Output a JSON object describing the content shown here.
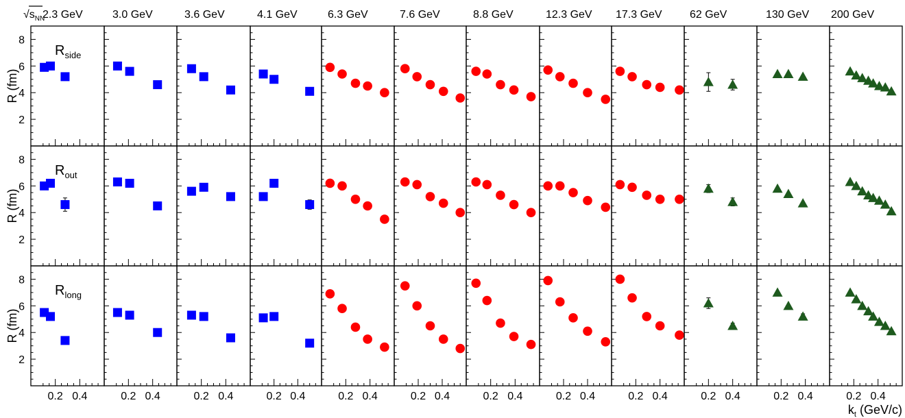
{
  "chart_data": {
    "type": "scatter",
    "energy_symbol": "√s",
    "energy_symbol_sub": "NN",
    "energies": [
      "2.3 GeV",
      "3.0 GeV",
      "3.6 GeV",
      "4.1 GeV",
      "6.3 GeV",
      "7.6 GeV",
      "8.8 GeV",
      "12.3 GeV",
      "17.3 GeV",
      "62  GeV",
      "130 GeV",
      "200 GeV"
    ],
    "rows": [
      {
        "label": "R",
        "sub": "side"
      },
      {
        "label": "R",
        "sub": "out"
      },
      {
        "label": "R",
        "sub": "long"
      }
    ],
    "ylabel": "R (fm)",
    "xlabel": "k",
    "xlabel_sub": "t",
    "xlabel_unit": " (GeV/c)",
    "ylim": [
      0,
      9
    ],
    "xlim": [
      0,
      0.6
    ],
    "y_ticks": [
      2,
      4,
      6,
      8
    ],
    "y_tick_labels": [
      "2",
      "4",
      "6",
      "8"
    ],
    "x_ticks": [
      0.2,
      0.4
    ],
    "x_tick_labels": [
      "0.2",
      "0.4"
    ],
    "grid": false,
    "marker_colors": {
      "square": "#0000ff",
      "circle": "#ff0000",
      "triangle": "#1e5a1e"
    },
    "panel_markers": [
      "square",
      "square",
      "square",
      "square",
      "circle",
      "circle",
      "circle",
      "circle",
      "circle",
      "triangle",
      "triangle",
      "triangle"
    ],
    "panels": [
      [
        [
          [
            0.11,
            5.9,
            0.12
          ],
          [
            0.16,
            6.0,
            0.25
          ],
          [
            0.28,
            5.2,
            0.15
          ]
        ],
        [
          [
            0.11,
            6.0,
            0.1
          ],
          [
            0.21,
            5.6,
            0.1
          ],
          [
            0.44,
            4.6,
            0.1
          ]
        ],
        [
          [
            0.12,
            5.8,
            0.1
          ],
          [
            0.22,
            5.2,
            0.1
          ],
          [
            0.44,
            4.2,
            0.1
          ]
        ],
        [
          [
            0.11,
            5.4,
            0.25
          ],
          [
            0.2,
            5.0,
            0.1
          ],
          [
            0.5,
            4.1,
            0.1
          ]
        ],
        [
          [
            0.07,
            5.9,
            0.1
          ],
          [
            0.17,
            5.4,
            0.1
          ],
          [
            0.28,
            4.7,
            0.1
          ],
          [
            0.38,
            4.5,
            0.1
          ],
          [
            0.52,
            4.0,
            0.1
          ]
        ],
        [
          [
            0.09,
            5.8,
            0.1
          ],
          [
            0.19,
            5.2,
            0.1
          ],
          [
            0.3,
            4.6,
            0.1
          ],
          [
            0.41,
            4.1,
            0.1
          ],
          [
            0.55,
            3.6,
            0.1
          ]
        ],
        [
          [
            0.08,
            5.6,
            0.1
          ],
          [
            0.17,
            5.4,
            0.1
          ],
          [
            0.28,
            4.6,
            0.1
          ],
          [
            0.39,
            4.2,
            0.1
          ],
          [
            0.53,
            3.7,
            0.1
          ]
        ],
        [
          [
            0.07,
            5.7,
            0.1
          ],
          [
            0.17,
            5.2,
            0.1
          ],
          [
            0.28,
            4.7,
            0.1
          ],
          [
            0.4,
            4.0,
            0.1
          ],
          [
            0.55,
            3.5,
            0.25
          ]
        ],
        [
          [
            0.07,
            5.6,
            0.1
          ],
          [
            0.17,
            5.2,
            0.1
          ],
          [
            0.29,
            4.6,
            0.1
          ],
          [
            0.4,
            4.4,
            0.1
          ],
          [
            0.56,
            4.2,
            0.1
          ]
        ],
        [
          [
            0.2,
            4.8,
            0.7
          ],
          [
            0.4,
            4.6,
            0.4
          ]
        ],
        [
          [
            0.17,
            5.4,
            0.1
          ],
          [
            0.26,
            5.4,
            0.1
          ],
          [
            0.38,
            5.2,
            0.1
          ]
        ],
        [
          [
            0.17,
            5.6,
            0.1
          ],
          [
            0.22,
            5.3,
            0.1
          ],
          [
            0.27,
            5.1,
            0.1
          ],
          [
            0.32,
            4.9,
            0.1
          ],
          [
            0.36,
            4.7,
            0.1
          ],
          [
            0.41,
            4.5,
            0.1
          ],
          [
            0.46,
            4.4,
            0.1
          ],
          [
            0.51,
            4.1,
            0.1
          ]
        ]
      ],
      [
        [
          [
            0.11,
            6.0,
            0.12
          ],
          [
            0.16,
            6.2,
            0.1
          ],
          [
            0.28,
            4.6,
            0.5
          ]
        ],
        [
          [
            0.11,
            6.3,
            0.1
          ],
          [
            0.21,
            6.2,
            0.1
          ],
          [
            0.44,
            4.5,
            0.1
          ]
        ],
        [
          [
            0.12,
            5.6,
            0.1
          ],
          [
            0.22,
            5.9,
            0.1
          ],
          [
            0.44,
            5.2,
            0.1
          ]
        ],
        [
          [
            0.11,
            5.2,
            0.2
          ],
          [
            0.2,
            6.2,
            0.3
          ],
          [
            0.5,
            4.6,
            0.35
          ]
        ],
        [
          [
            0.07,
            6.2,
            0.1
          ],
          [
            0.17,
            6.0,
            0.1
          ],
          [
            0.28,
            5.0,
            0.1
          ],
          [
            0.38,
            4.5,
            0.1
          ],
          [
            0.52,
            3.5,
            0.1
          ]
        ],
        [
          [
            0.09,
            6.3,
            0.1
          ],
          [
            0.19,
            6.1,
            0.1
          ],
          [
            0.3,
            5.2,
            0.1
          ],
          [
            0.41,
            4.7,
            0.1
          ],
          [
            0.55,
            4.0,
            0.1
          ]
        ],
        [
          [
            0.08,
            6.3,
            0.1
          ],
          [
            0.17,
            6.1,
            0.1
          ],
          [
            0.28,
            5.3,
            0.1
          ],
          [
            0.39,
            4.6,
            0.1
          ],
          [
            0.53,
            4.0,
            0.1
          ]
        ],
        [
          [
            0.07,
            6.0,
            0.1
          ],
          [
            0.17,
            6.0,
            0.1
          ],
          [
            0.28,
            5.5,
            0.1
          ],
          [
            0.4,
            4.9,
            0.1
          ],
          [
            0.55,
            4.4,
            0.1
          ]
        ],
        [
          [
            0.07,
            6.1,
            0.1
          ],
          [
            0.17,
            5.9,
            0.1
          ],
          [
            0.29,
            5.3,
            0.1
          ],
          [
            0.4,
            5.0,
            0.1
          ],
          [
            0.56,
            5.0,
            0.1
          ]
        ],
        [
          [
            0.2,
            5.8,
            0.3
          ],
          [
            0.4,
            4.8,
            0.3
          ]
        ],
        [
          [
            0.17,
            5.8,
            0.1
          ],
          [
            0.26,
            5.4,
            0.1
          ],
          [
            0.38,
            4.7,
            0.1
          ]
        ],
        [
          [
            0.17,
            6.3,
            0.1
          ],
          [
            0.22,
            6.0,
            0.1
          ],
          [
            0.27,
            5.6,
            0.1
          ],
          [
            0.32,
            5.3,
            0.1
          ],
          [
            0.36,
            5.1,
            0.1
          ],
          [
            0.41,
            4.9,
            0.1
          ],
          [
            0.46,
            4.6,
            0.1
          ],
          [
            0.51,
            4.1,
            0.1
          ]
        ]
      ],
      [
        [
          [
            0.11,
            5.5,
            0.1
          ],
          [
            0.16,
            5.2,
            0.1
          ],
          [
            0.28,
            3.4,
            0.1
          ]
        ],
        [
          [
            0.11,
            5.5,
            0.1
          ],
          [
            0.21,
            5.3,
            0.1
          ],
          [
            0.44,
            4.0,
            0.1
          ]
        ],
        [
          [
            0.12,
            5.3,
            0.1
          ],
          [
            0.22,
            5.2,
            0.1
          ],
          [
            0.44,
            3.6,
            0.1
          ]
        ],
        [
          [
            0.11,
            5.1,
            0.15
          ],
          [
            0.2,
            5.2,
            0.1
          ],
          [
            0.5,
            3.2,
            0.1
          ]
        ],
        [
          [
            0.07,
            6.9,
            0.1
          ],
          [
            0.17,
            5.8,
            0.1
          ],
          [
            0.28,
            4.4,
            0.1
          ],
          [
            0.38,
            3.5,
            0.1
          ],
          [
            0.52,
            2.9,
            0.1
          ]
        ],
        [
          [
            0.09,
            7.5,
            0.1
          ],
          [
            0.19,
            6.0,
            0.1
          ],
          [
            0.3,
            4.5,
            0.1
          ],
          [
            0.41,
            3.5,
            0.1
          ],
          [
            0.55,
            2.8,
            0.1
          ]
        ],
        [
          [
            0.08,
            7.7,
            0.1
          ],
          [
            0.17,
            6.4,
            0.1
          ],
          [
            0.28,
            4.7,
            0.1
          ],
          [
            0.39,
            3.7,
            0.1
          ],
          [
            0.53,
            3.1,
            0.1
          ]
        ],
        [
          [
            0.07,
            7.9,
            0.1
          ],
          [
            0.17,
            6.3,
            0.1
          ],
          [
            0.28,
            5.1,
            0.1
          ],
          [
            0.4,
            4.1,
            0.1
          ],
          [
            0.55,
            3.3,
            0.1
          ]
        ],
        [
          [
            0.07,
            8.0,
            0.1
          ],
          [
            0.17,
            6.6,
            0.1
          ],
          [
            0.29,
            5.2,
            0.1
          ],
          [
            0.4,
            4.5,
            0.1
          ],
          [
            0.56,
            3.8,
            0.1
          ]
        ],
        [
          [
            0.2,
            6.2,
            0.4
          ],
          [
            0.4,
            4.5,
            0.2
          ]
        ],
        [
          [
            0.17,
            7.0,
            0.1
          ],
          [
            0.26,
            6.0,
            0.1
          ],
          [
            0.38,
            5.2,
            0.2
          ]
        ],
        [
          [
            0.17,
            7.0,
            0.1
          ],
          [
            0.22,
            6.5,
            0.1
          ],
          [
            0.27,
            6.0,
            0.1
          ],
          [
            0.32,
            5.6,
            0.1
          ],
          [
            0.36,
            5.2,
            0.1
          ],
          [
            0.41,
            4.8,
            0.1
          ],
          [
            0.46,
            4.5,
            0.1
          ],
          [
            0.51,
            4.1,
            0.1
          ]
        ]
      ]
    ]
  }
}
